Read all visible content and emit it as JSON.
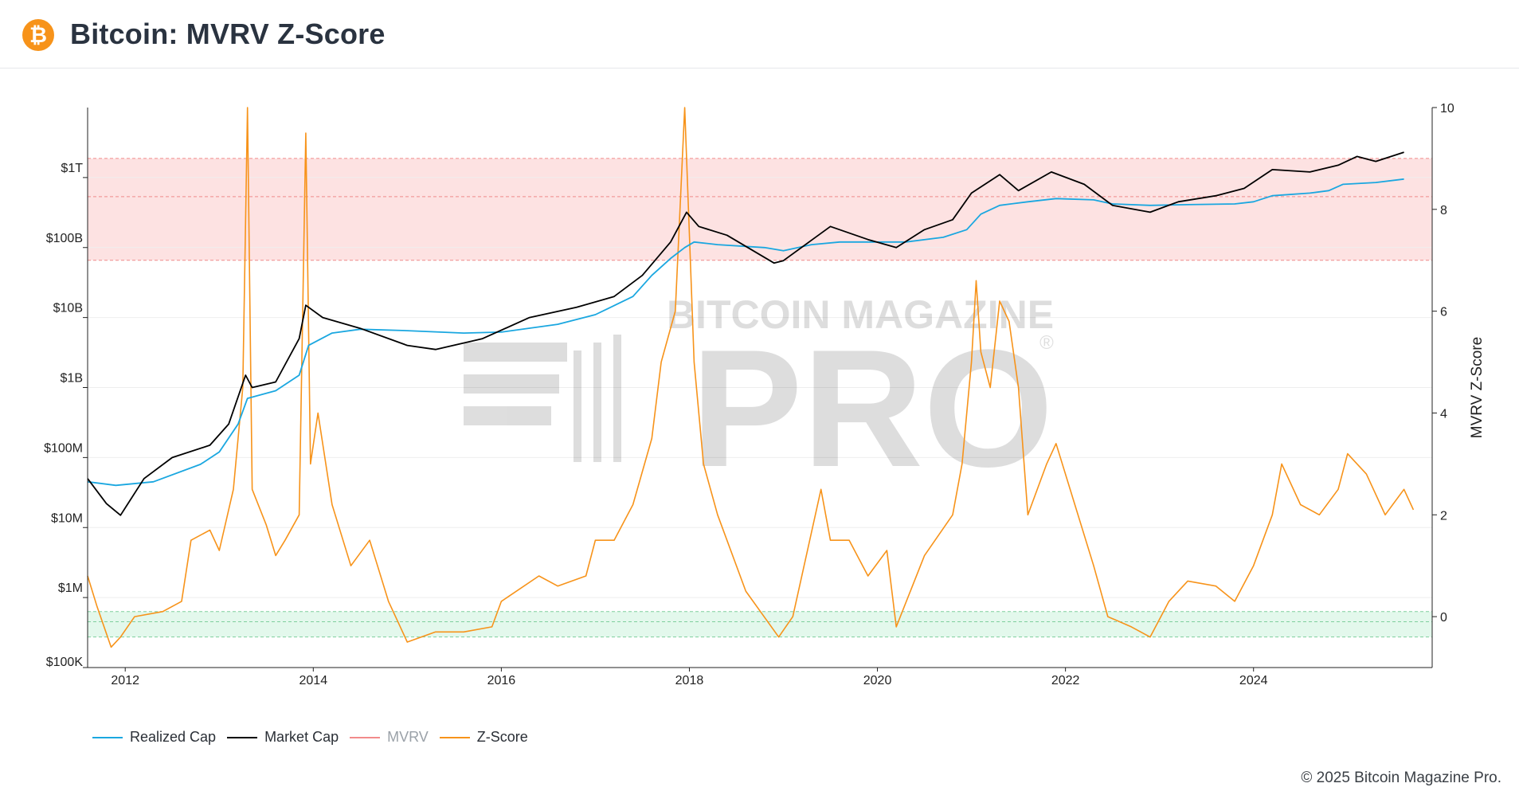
{
  "header": {
    "title": "Bitcoin: MVRV Z-Score",
    "logo_glyph": "₿"
  },
  "watermark": {
    "line1": "BITCOIN MAGAZINE",
    "line2": "PRO",
    "mark": "®"
  },
  "copyright": "© 2025 Bitcoin Magazine Pro.",
  "colors": {
    "realized_cap": "#1aa7e0",
    "market_cap": "#000000",
    "mvrv": "#f28b8b",
    "zscore": "#f7931a",
    "high_band": "#fde2e2",
    "low_band": "#e3f8ec"
  },
  "legend": [
    {
      "label": "Realized Cap",
      "color": "#1aa7e0",
      "muted": false
    },
    {
      "label": "Market Cap",
      "color": "#000000",
      "muted": false
    },
    {
      "label": "MVRV",
      "color": "#f28b8b",
      "muted": true
    },
    {
      "label": "Z-Score",
      "color": "#f7931a",
      "muted": false
    }
  ],
  "chart_data": {
    "type": "line",
    "title": "Bitcoin: MVRV Z-Score",
    "xlabel": "",
    "x_range": [
      2011.6,
      2025.9
    ],
    "x_ticks": [
      "2012",
      "2014",
      "2016",
      "2018",
      "2020",
      "2022",
      "2024"
    ],
    "x_tick_values": [
      2012,
      2014,
      2016,
      2018,
      2020,
      2022,
      2024
    ],
    "y_left": {
      "scale": "log",
      "range": [
        100000,
        10000000000000
      ],
      "ticks": [
        "$100K",
        "$1M",
        "$10M",
        "$100M",
        "$1B",
        "$10B",
        "$100B",
        "$1T"
      ],
      "tick_values": [
        100000,
        1000000,
        10000000,
        100000000,
        1000000000,
        10000000000,
        100000000000,
        1000000000000
      ]
    },
    "y_right": {
      "label": "MVRV Z-Score",
      "range": [
        -1,
        10
      ],
      "ticks": [
        "0",
        "2",
        "4",
        "6",
        "8",
        "10"
      ],
      "tick_values": [
        0,
        2,
        4,
        6,
        8,
        10
      ]
    },
    "bands": [
      {
        "name": "high",
        "axis": "right",
        "from": 7,
        "to": 9,
        "mid": 8.25
      },
      {
        "name": "low",
        "axis": "right",
        "from": -0.4,
        "to": 0.1,
        "mid": -0.1
      }
    ],
    "series": [
      {
        "name": "Realized Cap",
        "axis": "left",
        "x": [
          2011.6,
          2011.9,
          2012.3,
          2012.8,
          2013.0,
          2013.2,
          2013.3,
          2013.6,
          2013.85,
          2013.95,
          2014.2,
          2014.5,
          2015.0,
          2015.6,
          2016.0,
          2016.6,
          2017.0,
          2017.4,
          2017.6,
          2017.8,
          2017.95,
          2018.05,
          2018.3,
          2018.8,
          2019.0,
          2019.3,
          2019.6,
          2020.0,
          2020.3,
          2020.7,
          2020.95,
          2021.1,
          2021.3,
          2021.6,
          2021.9,
          2022.3,
          2022.5,
          2022.9,
          2023.3,
          2023.8,
          2024.0,
          2024.2,
          2024.6,
          2024.8,
          2024.95,
          2025.3,
          2025.6
        ],
        "values": [
          45000000,
          40000000,
          45000000,
          80000000,
          120000000,
          300000000,
          700000000,
          900000000,
          1500000000,
          4000000000,
          6000000000,
          6800000000,
          6500000000,
          6000000000,
          6200000000,
          8000000000,
          11000000000,
          20000000000,
          40000000000,
          70000000000,
          100000000000,
          120000000000,
          110000000000,
          100000000000,
          90000000000,
          110000000000,
          120000000000,
          120000000000,
          120000000000,
          140000000000,
          180000000000,
          300000000000,
          400000000000,
          450000000000,
          500000000000,
          480000000000,
          420000000000,
          400000000000,
          410000000000,
          420000000000,
          450000000000,
          550000000000,
          600000000000,
          650000000000,
          800000000000,
          850000000000,
          950000000000
        ]
      },
      {
        "name": "Market Cap",
        "axis": "left",
        "x": [
          2011.6,
          2011.8,
          2011.95,
          2012.2,
          2012.5,
          2012.9,
          2013.1,
          2013.28,
          2013.35,
          2013.6,
          2013.85,
          2013.92,
          2014.1,
          2014.5,
          2015.0,
          2015.3,
          2015.8,
          2016.3,
          2016.8,
          2017.2,
          2017.5,
          2017.8,
          2017.97,
          2018.1,
          2018.4,
          2018.9,
          2019.0,
          2019.5,
          2019.9,
          2020.2,
          2020.5,
          2020.8,
          2021.0,
          2021.3,
          2021.5,
          2021.85,
          2022.2,
          2022.5,
          2022.9,
          2023.2,
          2023.6,
          2023.9,
          2024.2,
          2024.6,
          2024.9,
          2025.1,
          2025.3,
          2025.6
        ],
        "values": [
          50000000,
          22000000,
          15000000,
          50000000,
          100000000,
          150000000,
          300000000,
          1500000000,
          1000000000,
          1200000000,
          5000000000,
          15000000000,
          10000000000,
          7000000000,
          4000000000,
          3500000000,
          5000000000,
          10000000000,
          14000000000,
          20000000000,
          40000000000,
          120000000000,
          320000000000,
          200000000000,
          150000000000,
          60000000000,
          65000000000,
          200000000000,
          130000000000,
          100000000000,
          180000000000,
          250000000000,
          600000000000,
          1100000000000,
          650000000000,
          1200000000000,
          800000000000,
          400000000000,
          320000000000,
          450000000000,
          550000000000,
          700000000000,
          1300000000000,
          1200000000000,
          1500000000000,
          2000000000000,
          1700000000000,
          2300000000000
        ]
      },
      {
        "name": "Z-Score",
        "axis": "right",
        "x": [
          2011.6,
          2011.7,
          2011.85,
          2011.95,
          2012.1,
          2012.4,
          2012.6,
          2012.7,
          2012.9,
          2013.0,
          2013.15,
          2013.25,
          2013.3,
          2013.35,
          2013.5,
          2013.6,
          2013.7,
          2013.85,
          2013.92,
          2013.97,
          2014.05,
          2014.2,
          2014.4,
          2014.6,
          2014.8,
          2015.0,
          2015.3,
          2015.6,
          2015.9,
          2016.0,
          2016.4,
          2016.6,
          2016.9,
          2017.0,
          2017.2,
          2017.4,
          2017.6,
          2017.7,
          2017.85,
          2017.95,
          2018.05,
          2018.15,
          2018.3,
          2018.6,
          2018.95,
          2019.1,
          2019.4,
          2019.5,
          2019.7,
          2019.9,
          2020.1,
          2020.2,
          2020.5,
          2020.8,
          2020.9,
          2021.0,
          2021.05,
          2021.1,
          2021.2,
          2021.3,
          2021.4,
          2021.5,
          2021.6,
          2021.8,
          2021.9,
          2022.1,
          2022.3,
          2022.45,
          2022.7,
          2022.9,
          2023.1,
          2023.3,
          2023.6,
          2023.8,
          2024.0,
          2024.2,
          2024.3,
          2024.5,
          2024.7,
          2024.9,
          2025.0,
          2025.2,
          2025.4,
          2025.6,
          2025.7
        ],
        "values": [
          0.8,
          0.2,
          -0.6,
          -0.4,
          0.0,
          0.1,
          0.3,
          1.5,
          1.7,
          1.3,
          2.5,
          4.5,
          10.0,
          2.5,
          1.8,
          1.2,
          1.5,
          2.0,
          9.5,
          3.0,
          4.0,
          2.2,
          1.0,
          1.5,
          0.3,
          -0.5,
          -0.3,
          -0.3,
          -0.2,
          0.3,
          0.8,
          0.6,
          0.8,
          1.5,
          1.5,
          2.2,
          3.5,
          5.0,
          6.0,
          10.0,
          5.0,
          3.0,
          2.0,
          0.5,
          -0.4,
          0.0,
          2.5,
          1.5,
          1.5,
          0.8,
          1.3,
          -0.2,
          1.2,
          2.0,
          3.0,
          5.0,
          6.6,
          5.2,
          4.5,
          6.2,
          5.8,
          4.5,
          2.0,
          3.0,
          3.4,
          2.2,
          1.0,
          0.0,
          -0.2,
          -0.4,
          0.3,
          0.7,
          0.6,
          0.3,
          1.0,
          2.0,
          3.0,
          2.2,
          2.0,
          2.5,
          3.2,
          2.8,
          2.0,
          2.5,
          2.1
        ]
      }
    ]
  }
}
